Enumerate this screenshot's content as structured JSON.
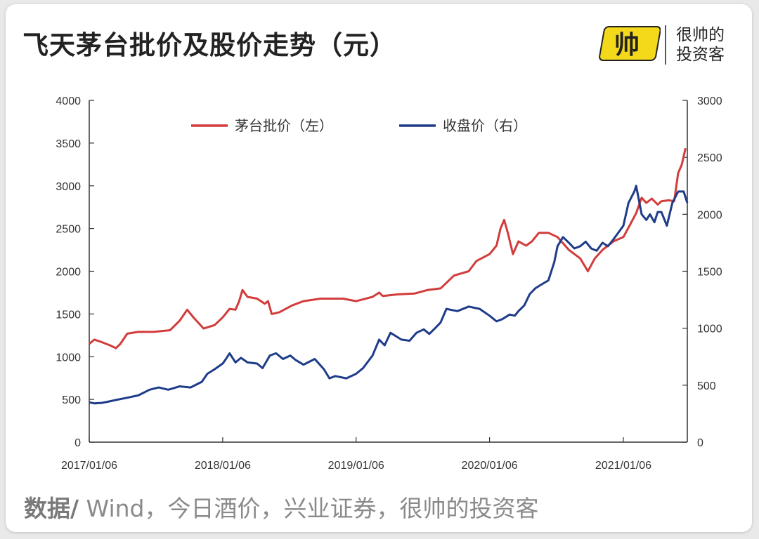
{
  "title": "飞天茅台批价及股价走势（元）",
  "brand": {
    "logo_text": "帅",
    "line1": "很帅的",
    "line2": "投资客",
    "logo_color": "#f4d91a"
  },
  "source": {
    "label": "数据/",
    "text": " Wind，今日酒价，兴业证券，很帅的投资客"
  },
  "chart_data": {
    "type": "line",
    "x_ticks": [
      "2017/01/06",
      "2018/01/06",
      "2019/01/06",
      "2020/01/06",
      "2021/01/06"
    ],
    "x_range": [
      "2017-01-06",
      "2021-06-30"
    ],
    "y_left": {
      "ticks": [
        0,
        500,
        1000,
        1500,
        2000,
        2500,
        3000,
        3500,
        4000
      ],
      "range": [
        0,
        4000
      ]
    },
    "y_right": {
      "ticks": [
        0,
        500,
        1000,
        1500,
        2000,
        2500,
        3000
      ],
      "range": [
        0,
        3000
      ]
    },
    "legend_position": "top",
    "series": [
      {
        "name": "茅台批价（左）",
        "axis": "left",
        "color": "#d23c3a",
        "points": [
          [
            "2017-01-06",
            1150
          ],
          [
            "2017-01-20",
            1200
          ],
          [
            "2017-02-10",
            1170
          ],
          [
            "2017-03-05",
            1130
          ],
          [
            "2017-03-20",
            1100
          ],
          [
            "2017-04-01",
            1150
          ],
          [
            "2017-04-20",
            1270
          ],
          [
            "2017-05-20",
            1290
          ],
          [
            "2017-07-01",
            1290
          ],
          [
            "2017-08-15",
            1310
          ],
          [
            "2017-09-10",
            1420
          ],
          [
            "2017-10-01",
            1550
          ],
          [
            "2017-10-20",
            1450
          ],
          [
            "2017-11-15",
            1330
          ],
          [
            "2017-12-15",
            1370
          ],
          [
            "2018-01-06",
            1460
          ],
          [
            "2018-01-25",
            1560
          ],
          [
            "2018-02-10",
            1550
          ],
          [
            "2018-02-20",
            1650
          ],
          [
            "2018-03-01",
            1780
          ],
          [
            "2018-03-15",
            1700
          ],
          [
            "2018-04-10",
            1680
          ],
          [
            "2018-05-01",
            1620
          ],
          [
            "2018-05-10",
            1650
          ],
          [
            "2018-05-20",
            1500
          ],
          [
            "2018-06-10",
            1520
          ],
          [
            "2018-07-15",
            1600
          ],
          [
            "2018-08-15",
            1650
          ],
          [
            "2018-10-01",
            1680
          ],
          [
            "2018-12-01",
            1680
          ],
          [
            "2019-01-06",
            1650
          ],
          [
            "2019-02-20",
            1700
          ],
          [
            "2019-03-10",
            1750
          ],
          [
            "2019-03-20",
            1710
          ],
          [
            "2019-05-01",
            1730
          ],
          [
            "2019-06-15",
            1740
          ],
          [
            "2019-07-20",
            1780
          ],
          [
            "2019-08-25",
            1800
          ],
          [
            "2019-10-01",
            1950
          ],
          [
            "2019-11-10",
            2000
          ],
          [
            "2019-12-01",
            2120
          ],
          [
            "2020-01-06",
            2200
          ],
          [
            "2020-01-25",
            2300
          ],
          [
            "2020-02-05",
            2500
          ],
          [
            "2020-02-15",
            2600
          ],
          [
            "2020-02-25",
            2450
          ],
          [
            "2020-03-10",
            2200
          ],
          [
            "2020-03-25",
            2350
          ],
          [
            "2020-04-15",
            2300
          ],
          [
            "2020-05-01",
            2350
          ],
          [
            "2020-05-20",
            2450
          ],
          [
            "2020-06-15",
            2450
          ],
          [
            "2020-07-10",
            2400
          ],
          [
            "2020-08-10",
            2250
          ],
          [
            "2020-09-10",
            2150
          ],
          [
            "2020-10-01",
            2000
          ],
          [
            "2020-10-20",
            2150
          ],
          [
            "2020-11-10",
            2250
          ],
          [
            "2020-12-10",
            2350
          ],
          [
            "2021-01-06",
            2400
          ],
          [
            "2021-01-25",
            2550
          ],
          [
            "2021-02-10",
            2680
          ],
          [
            "2021-02-25",
            2860
          ],
          [
            "2021-03-10",
            2800
          ],
          [
            "2021-03-25",
            2850
          ],
          [
            "2021-04-10",
            2780
          ],
          [
            "2021-04-20",
            2820
          ],
          [
            "2021-05-10",
            2830
          ],
          [
            "2021-05-25",
            2820
          ],
          [
            "2021-06-05",
            3150
          ],
          [
            "2021-06-15",
            3250
          ],
          [
            "2021-06-25",
            3440
          ]
        ]
      },
      {
        "name": "收盘价（右）",
        "axis": "right",
        "color": "#1f3c8a",
        "points": [
          [
            "2017-01-06",
            350
          ],
          [
            "2017-01-20",
            340
          ],
          [
            "2017-02-10",
            345
          ],
          [
            "2017-03-05",
            360
          ],
          [
            "2017-03-20",
            370
          ],
          [
            "2017-04-20",
            390
          ],
          [
            "2017-05-20",
            410
          ],
          [
            "2017-06-20",
            460
          ],
          [
            "2017-07-15",
            480
          ],
          [
            "2017-08-10",
            460
          ],
          [
            "2017-09-10",
            490
          ],
          [
            "2017-10-10",
            480
          ],
          [
            "2017-11-10",
            530
          ],
          [
            "2017-11-25",
            600
          ],
          [
            "2017-12-15",
            640
          ],
          [
            "2018-01-06",
            690
          ],
          [
            "2018-01-15",
            730
          ],
          [
            "2018-01-25",
            780
          ],
          [
            "2018-02-10",
            700
          ],
          [
            "2018-02-25",
            740
          ],
          [
            "2018-03-15",
            700
          ],
          [
            "2018-04-10",
            690
          ],
          [
            "2018-04-25",
            650
          ],
          [
            "2018-05-15",
            760
          ],
          [
            "2018-06-01",
            780
          ],
          [
            "2018-06-20",
            730
          ],
          [
            "2018-07-10",
            760
          ],
          [
            "2018-07-25",
            720
          ],
          [
            "2018-08-15",
            680
          ],
          [
            "2018-09-15",
            730
          ],
          [
            "2018-10-10",
            640
          ],
          [
            "2018-10-25",
            560
          ],
          [
            "2018-11-10",
            580
          ],
          [
            "2018-12-10",
            560
          ],
          [
            "2019-01-06",
            600
          ],
          [
            "2019-01-25",
            650
          ],
          [
            "2019-02-20",
            760
          ],
          [
            "2019-03-10",
            900
          ],
          [
            "2019-03-25",
            850
          ],
          [
            "2019-04-10",
            960
          ],
          [
            "2019-04-25",
            930
          ],
          [
            "2019-05-10",
            900
          ],
          [
            "2019-06-01",
            890
          ],
          [
            "2019-06-20",
            960
          ],
          [
            "2019-07-10",
            990
          ],
          [
            "2019-07-25",
            950
          ],
          [
            "2019-08-10",
            1000
          ],
          [
            "2019-08-25",
            1050
          ],
          [
            "2019-09-10",
            1170
          ],
          [
            "2019-10-10",
            1150
          ],
          [
            "2019-11-10",
            1190
          ],
          [
            "2019-12-10",
            1170
          ],
          [
            "2020-01-06",
            1110
          ],
          [
            "2020-01-25",
            1060
          ],
          [
            "2020-02-10",
            1080
          ],
          [
            "2020-03-01",
            1120
          ],
          [
            "2020-03-15",
            1110
          ],
          [
            "2020-03-25",
            1150
          ],
          [
            "2020-04-10",
            1200
          ],
          [
            "2020-04-25",
            1300
          ],
          [
            "2020-05-10",
            1350
          ],
          [
            "2020-05-25",
            1380
          ],
          [
            "2020-06-15",
            1420
          ],
          [
            "2020-07-01",
            1580
          ],
          [
            "2020-07-10",
            1720
          ],
          [
            "2020-07-25",
            1800
          ],
          [
            "2020-08-10",
            1750
          ],
          [
            "2020-08-25",
            1700
          ],
          [
            "2020-09-10",
            1720
          ],
          [
            "2020-09-25",
            1760
          ],
          [
            "2020-10-10",
            1700
          ],
          [
            "2020-10-25",
            1680
          ],
          [
            "2020-11-10",
            1750
          ],
          [
            "2020-11-25",
            1720
          ],
          [
            "2020-12-10",
            1780
          ],
          [
            "2021-01-06",
            1900
          ],
          [
            "2021-01-20",
            2100
          ],
          [
            "2021-02-05",
            2200
          ],
          [
            "2021-02-10",
            2250
          ],
          [
            "2021-02-25",
            2000
          ],
          [
            "2021-03-10",
            1950
          ],
          [
            "2021-03-20",
            2000
          ],
          [
            "2021-04-01",
            1930
          ],
          [
            "2021-04-10",
            2020
          ],
          [
            "2021-04-20",
            2020
          ],
          [
            "2021-05-05",
            1900
          ],
          [
            "2021-05-20",
            2100
          ],
          [
            "2021-06-05",
            2200
          ],
          [
            "2021-06-20",
            2200
          ],
          [
            "2021-06-30",
            2100
          ]
        ]
      }
    ]
  }
}
